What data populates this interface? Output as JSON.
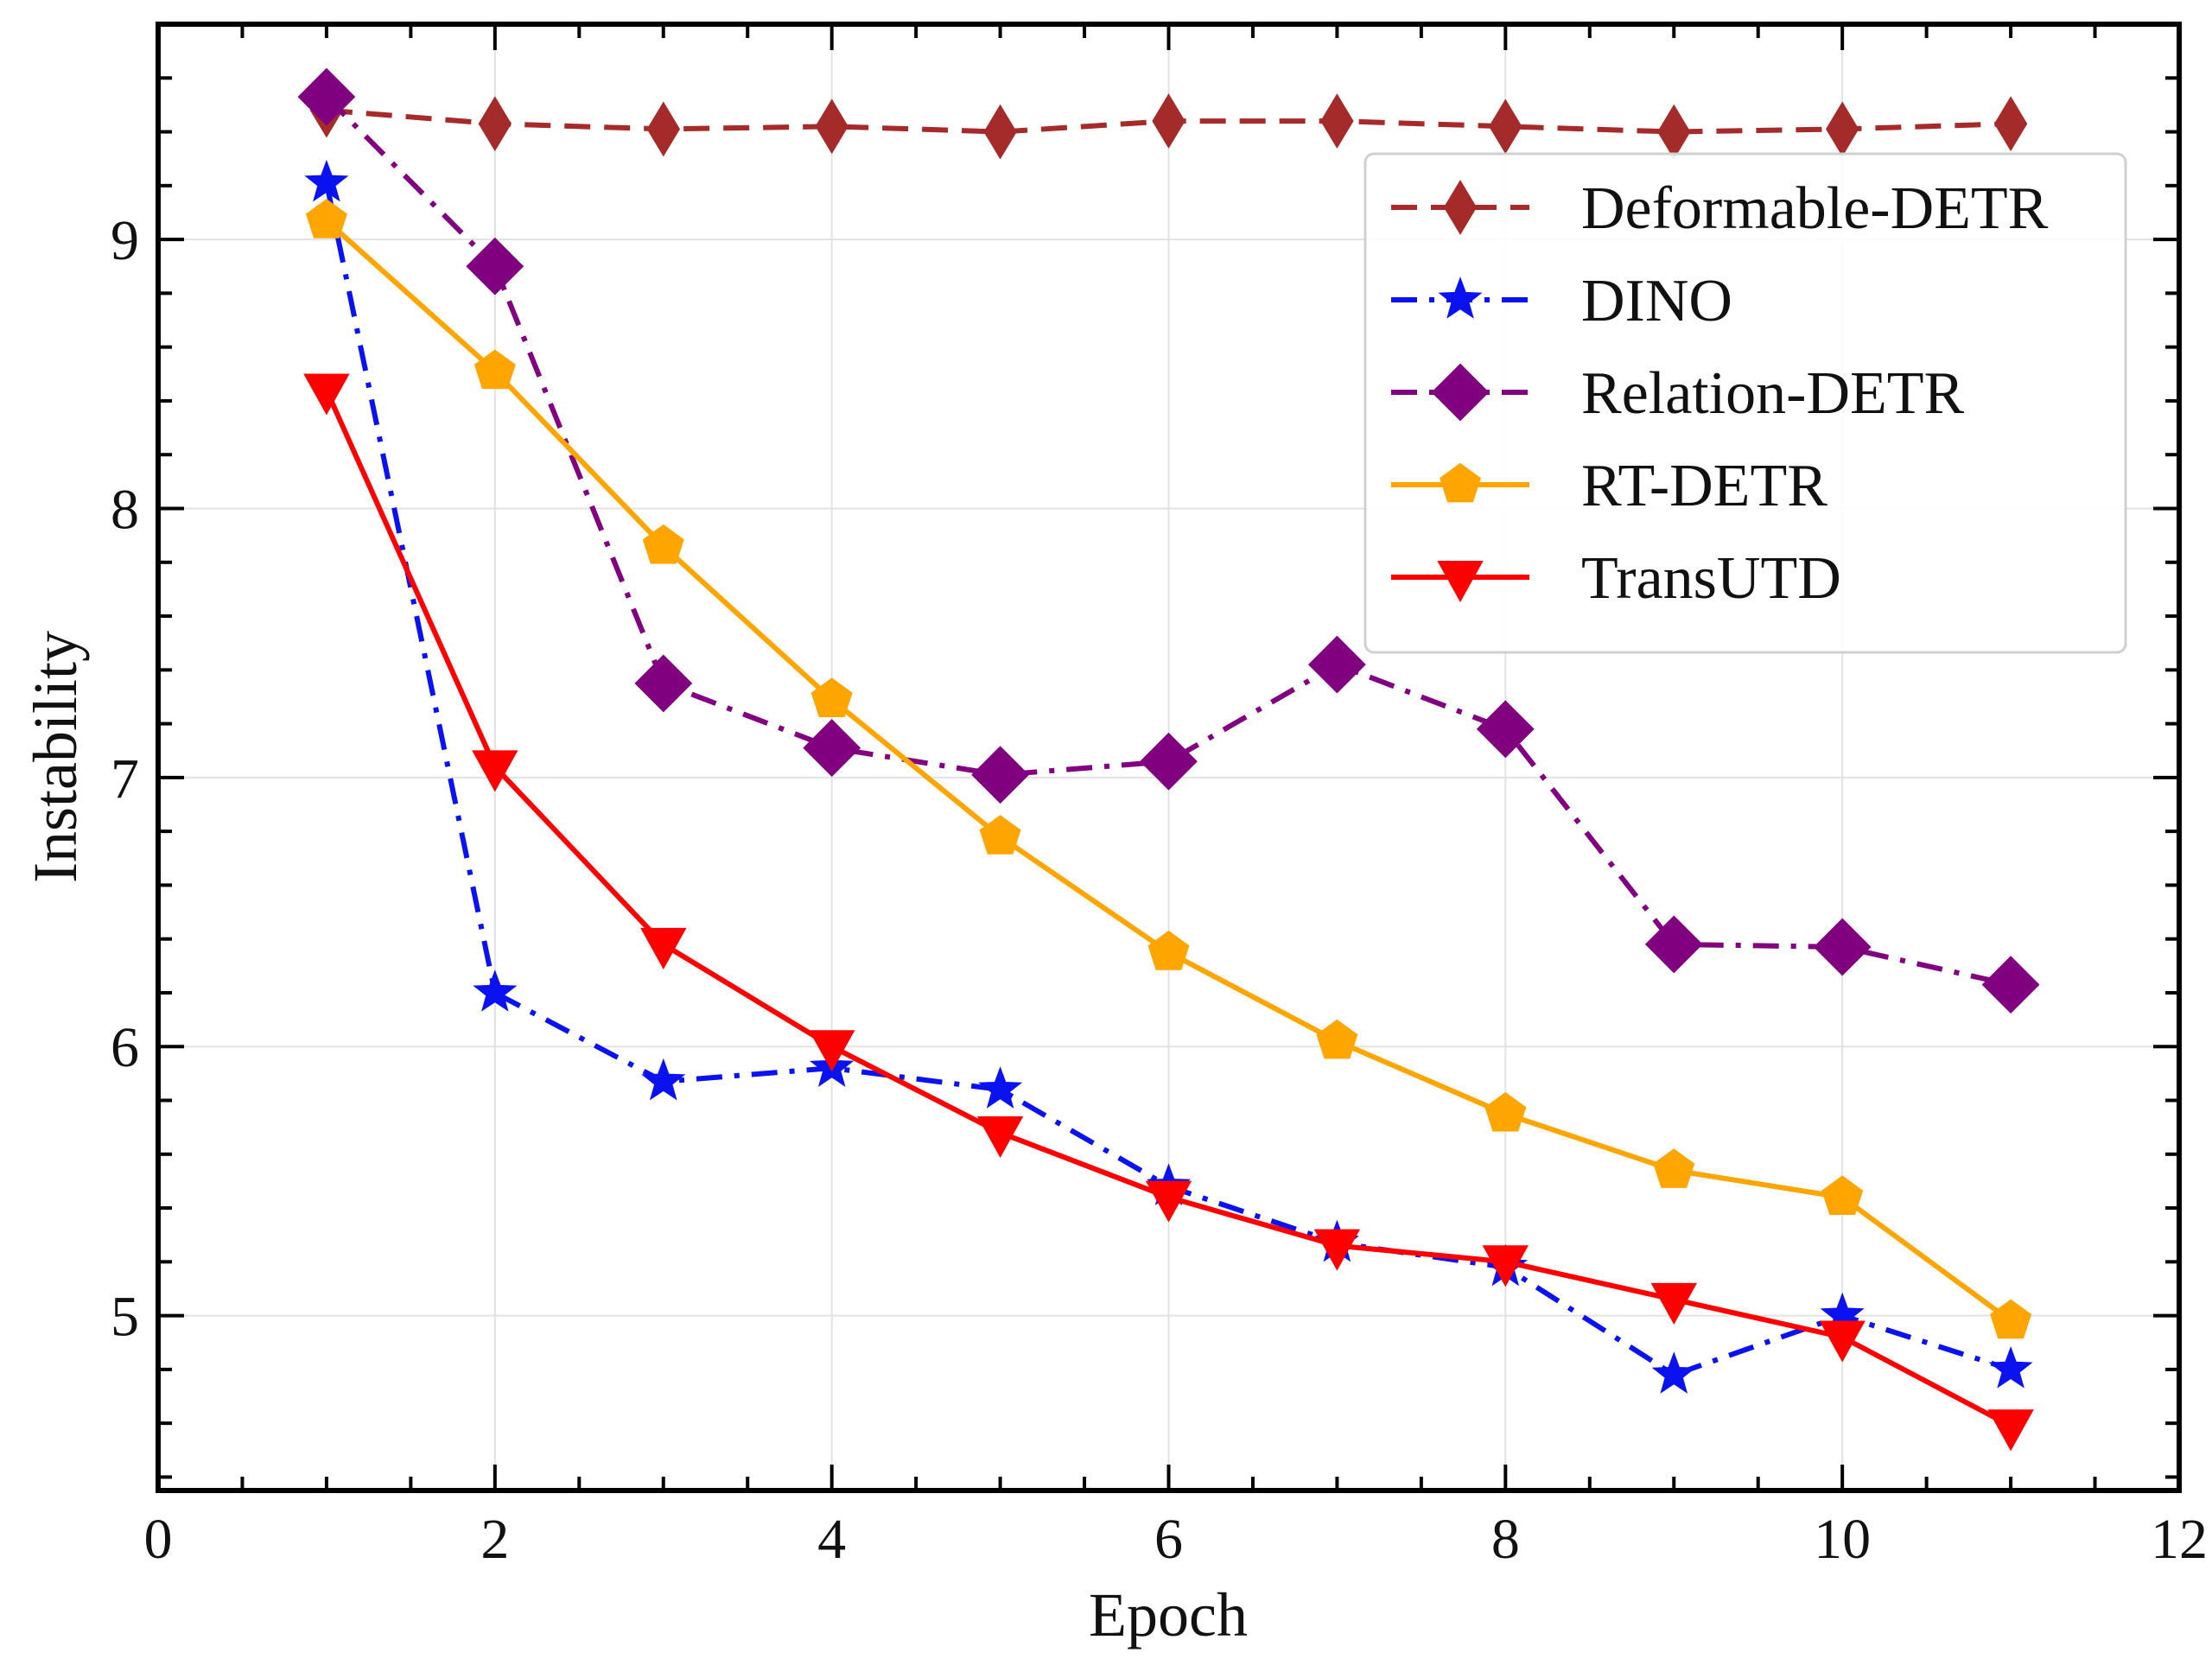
{
  "chart_data": {
    "type": "line",
    "xlabel": "Epoch",
    "ylabel": "Instability",
    "xlim": [
      0,
      12
    ],
    "ylim": [
      4.35,
      9.8
    ],
    "xticks": [
      0,
      2,
      4,
      6,
      8,
      10,
      12
    ],
    "yticks": [
      5,
      6,
      7,
      8,
      9
    ],
    "grid": true,
    "legend_position": "upper-right",
    "x": [
      1,
      2,
      3,
      4,
      5,
      6,
      7,
      8,
      9,
      10,
      11
    ],
    "series": [
      {
        "name": "Deformable-DETR",
        "color": "#a52a2a",
        "line_style": "dashed",
        "marker": "thin-diamond",
        "values": [
          9.48,
          9.43,
          9.41,
          9.42,
          9.4,
          9.44,
          9.44,
          9.42,
          9.4,
          9.41,
          9.43
        ]
      },
      {
        "name": "DINO",
        "color": "#0a12f0",
        "line_style": "dash-dot",
        "marker": "star",
        "values": [
          9.21,
          6.2,
          5.87,
          5.92,
          5.84,
          5.48,
          5.27,
          5.18,
          4.78,
          5.0,
          4.8
        ]
      },
      {
        "name": "Relation-DETR",
        "color": "#800080",
        "line_style": "dash-dot",
        "marker": "diamond",
        "values": [
          9.53,
          8.9,
          7.35,
          7.11,
          7.01,
          7.06,
          7.42,
          7.18,
          6.38,
          6.37,
          6.23
        ]
      },
      {
        "name": "RT-DETR",
        "color": "#ffa500",
        "line_style": "solid",
        "marker": "pentagon",
        "values": [
          9.07,
          8.51,
          7.86,
          7.29,
          6.78,
          6.35,
          6.02,
          5.75,
          5.54,
          5.44,
          4.98
        ]
      },
      {
        "name": "TransUTD",
        "color": "#ff0000",
        "line_style": "solid",
        "marker": "triangle-down",
        "values": [
          8.44,
          7.04,
          6.38,
          6.0,
          5.68,
          5.44,
          5.26,
          5.2,
          5.06,
          4.92,
          4.59
        ]
      }
    ]
  }
}
